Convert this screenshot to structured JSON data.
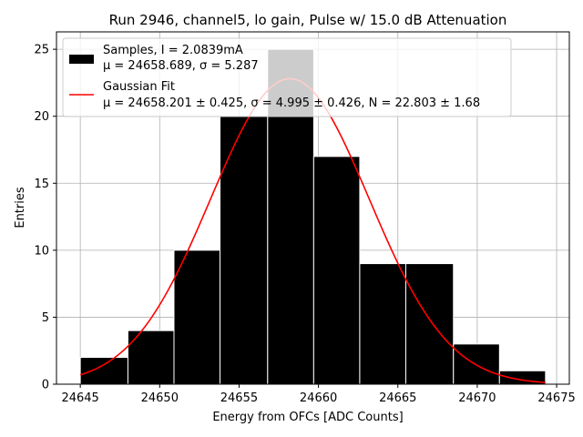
{
  "chart_data": {
    "type": "bar",
    "title": "Run 2946, channel5, lo gain, Pulse w/ 15.0 dB Attenuation",
    "xlabel": "Energy from OFCs [ADC Counts]",
    "ylabel": "Entries",
    "xlim": [
      24643.5,
      24675.8
    ],
    "ylim": [
      0,
      26.3
    ],
    "xticks": [
      24645,
      24650,
      24655,
      24660,
      24665,
      24670,
      24675
    ],
    "yticks": [
      0,
      5,
      10,
      15,
      20,
      25
    ],
    "grid": true,
    "legend_position": "top-left",
    "histogram": {
      "name": "Samples, I = 2.0839mA",
      "stats_line": "μ = 24658.689, σ = 5.287",
      "bins": [
        {
          "x0": 24645.0,
          "x1": 24648.0,
          "count": 2
        },
        {
          "x0": 24648.0,
          "x1": 24650.9,
          "count": 4
        },
        {
          "x0": 24650.9,
          "x1": 24653.8,
          "count": 10
        },
        {
          "x0": 24653.8,
          "x1": 24656.8,
          "count": 20
        },
        {
          "x0": 24656.8,
          "x1": 24659.7,
          "count": 25
        },
        {
          "x0": 24659.7,
          "x1": 24662.6,
          "count": 17
        },
        {
          "x0": 24662.6,
          "x1": 24665.5,
          "count": 9
        },
        {
          "x0": 24665.5,
          "x1": 24668.5,
          "count": 9
        },
        {
          "x0": 24668.5,
          "x1": 24671.4,
          "count": 3
        },
        {
          "x0": 24671.4,
          "x1": 24674.3,
          "count": 1
        }
      ],
      "color": "#000000",
      "edge_color": "#ffffff"
    },
    "fit": {
      "name": "Gaussian Fit",
      "stats_line": "μ = 24658.201 ± 0.425, σ = 4.995 ± 0.426, N = 22.803 ± 1.68",
      "mu": 24658.201,
      "sigma": 4.995,
      "N": 22.803,
      "x_range": [
        24645.0,
        24674.3
      ],
      "color": "#ff0000"
    }
  }
}
